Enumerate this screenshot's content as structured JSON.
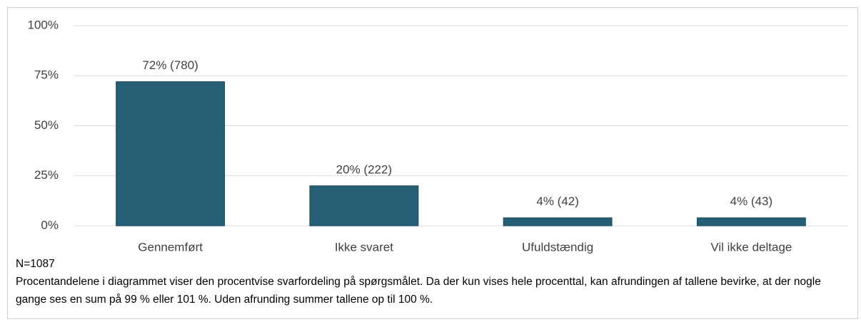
{
  "chart_data": {
    "type": "bar",
    "categories": [
      "Gennemført",
      "Ikke svaret",
      "Ufuldstændig",
      "Vil ikke deltage"
    ],
    "values": [
      72,
      20,
      4,
      4
    ],
    "value_labels": [
      "72% (780)",
      "20% (222)",
      "4% (42)",
      "4% (43)"
    ],
    "color": "#265f75",
    "ylim": [
      0,
      100
    ],
    "yticks": [
      {
        "value": 0,
        "label": "0%"
      },
      {
        "value": 25,
        "label": "25%"
      },
      {
        "value": 50,
        "label": "50%"
      },
      {
        "value": 75,
        "label": "75%"
      },
      {
        "value": 100,
        "label": "100%"
      }
    ],
    "grid": true,
    "sample_size": "N=1087",
    "note": "Procentandelene i diagrammet viser den procentvise svarfordeling på spørgsmålet. Da der kun vises hele procenttal, kan afrundingen af tallene bevirke, at der nogle gange ses en sum på 99 % eller 101 %. Uden afrunding summer tallene op til 100 %."
  }
}
